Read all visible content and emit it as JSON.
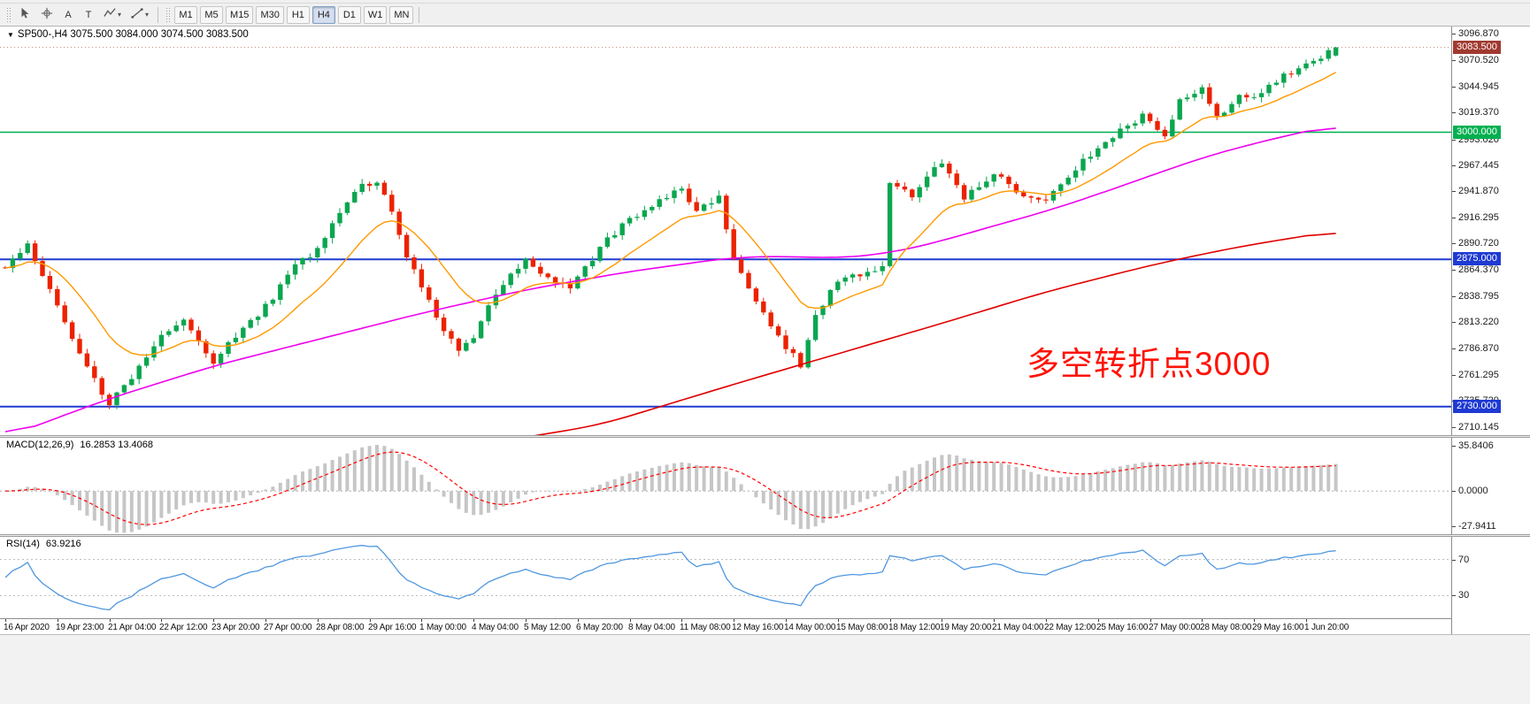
{
  "toolbar": {
    "tools": [
      {
        "name": "cursor-tool",
        "glyph": "cursor"
      },
      {
        "name": "crosshair-tool",
        "glyph": "crosshair"
      },
      {
        "name": "text-label-tool",
        "glyph": "A"
      },
      {
        "name": "text-box-tool",
        "glyph": "T"
      },
      {
        "name": "draw-shapes-tool",
        "glyph": "zigzag",
        "caret": true
      },
      {
        "name": "trendline-tool",
        "glyph": "trendline",
        "caret": true
      }
    ],
    "timeframes": [
      "M1",
      "M5",
      "M15",
      "M30",
      "H1",
      "H4",
      "D1",
      "W1",
      "MN"
    ],
    "active_timeframe": "H4"
  },
  "chart": {
    "marker": "▼",
    "symbol_line": "SP500-,H4 3075.500 3084.000 3074.500 3083.500",
    "annotation": {
      "text": "多空转折点3000",
      "color": "#ff1207"
    },
    "colors": {
      "up": "#0aa64f",
      "down": "#ec2200",
      "ma_fast": "#ff9900",
      "ma_mid": "#ee00ee",
      "ma_slow": "#e00000",
      "macd_hist": "#c6c6c6",
      "macd_signal": "#ff0000",
      "rsi_line": "#4f97e0",
      "bid_line": "#c87f76"
    },
    "hlines": [
      {
        "value": 3000,
        "color": "#00b050",
        "width": 1.6,
        "label": "3000.000"
      },
      {
        "value": 2875,
        "color": "#1f3ad2",
        "width": 2,
        "label": "2875.000"
      },
      {
        "value": 2730,
        "color": "#1f3ad2",
        "width": 2,
        "label": "2730.000"
      }
    ],
    "current_price": {
      "value": 3083.5,
      "label": "3083.500",
      "box_color": "#a03a30"
    }
  },
  "price_axis": {
    "labels": [
      "3096.870",
      "3070.520",
      "3044.945",
      "3019.370",
      "2993.020",
      "2967.445",
      "2941.870",
      "2916.295",
      "2890.720",
      "2864.370",
      "2838.795",
      "2813.220",
      "2786.870",
      "2761.295",
      "2735.720",
      "2710.145"
    ]
  },
  "time_axis": {
    "step": 7,
    "labels": [
      "16 Apr 2020",
      "19 Apr 23:00",
      "21 Apr 04:00",
      "22 Apr 12:00",
      "23 Apr 20:00",
      "27 Apr 00:00",
      "28 Apr 08:00",
      "29 Apr 16:00",
      "1 May 00:00",
      "4 May 04:00",
      "5 May 12:00",
      "6 May 20:00",
      "8 May 04:00",
      "11 May 08:00",
      "12 May 16:00",
      "14 May 00:00",
      "15 May 08:00",
      "18 May 12:00",
      "19 May 20:00",
      "21 May 04:00",
      "22 May 12:00",
      "25 May 16:00",
      "27 May 00:00",
      "28 May 08:00",
      "29 May 16:00",
      "1 Jun 20:00"
    ]
  },
  "macd": {
    "title": "MACD(12,26,9)",
    "values": "16.2853 13.4068",
    "axis": [
      "35.8406",
      "0.0000",
      "-27.9411"
    ]
  },
  "rsi": {
    "title": "RSI(14)",
    "value": "63.9216",
    "axis": [
      "70",
      "30"
    ]
  },
  "chart_data": {
    "type": "candlestick",
    "symbol": "SP500-",
    "timeframe": "H4",
    "candles_count": 180,
    "ohlc_current": {
      "open": 3075.5,
      "high": 3084.0,
      "low": 3074.5,
      "close": 3083.5
    },
    "price_range_visible": [
      2702,
      3104
    ],
    "levels": [
      3000,
      2875,
      2730
    ],
    "macd_params": [
      12,
      26,
      9
    ],
    "rsi_period": 14,
    "ma_fast_period": 14,
    "price_path": [
      [
        0,
        2865
      ],
      [
        3,
        2890
      ],
      [
        7,
        2830
      ],
      [
        10,
        2782
      ],
      [
        14,
        2733
      ],
      [
        17,
        2760
      ],
      [
        21,
        2800
      ],
      [
        24,
        2816
      ],
      [
        28,
        2775
      ],
      [
        31,
        2800
      ],
      [
        35,
        2828
      ],
      [
        39,
        2868
      ],
      [
        42,
        2886
      ],
      [
        45,
        2920
      ],
      [
        48,
        2948
      ],
      [
        50,
        2952
      ],
      [
        52,
        2920
      ],
      [
        54,
        2876
      ],
      [
        56,
        2850
      ],
      [
        59,
        2805
      ],
      [
        61,
        2786
      ],
      [
        63,
        2800
      ],
      [
        66,
        2840
      ],
      [
        70,
        2876
      ],
      [
        73,
        2856
      ],
      [
        76,
        2844
      ],
      [
        80,
        2886
      ],
      [
        84,
        2916
      ],
      [
        88,
        2932
      ],
      [
        91,
        2946
      ],
      [
        93,
        2920
      ],
      [
        96,
        2940
      ],
      [
        98,
        2872
      ],
      [
        101,
        2836
      ],
      [
        104,
        2800
      ],
      [
        107,
        2769
      ],
      [
        109,
        2820
      ],
      [
        112,
        2852
      ],
      [
        115,
        2860
      ],
      [
        118,
        2868
      ],
      [
        119,
        2950
      ],
      [
        122,
        2936
      ],
      [
        126,
        2972
      ],
      [
        129,
        2936
      ],
      [
        133,
        2960
      ],
      [
        136,
        2940
      ],
      [
        140,
        2936
      ],
      [
        143,
        2956
      ],
      [
        147,
        2986
      ],
      [
        150,
        3002
      ],
      [
        153,
        3016
      ],
      [
        156,
        2996
      ],
      [
        158,
        3030
      ],
      [
        161,
        3042
      ],
      [
        163,
        3016
      ],
      [
        166,
        3036
      ],
      [
        168,
        3032
      ],
      [
        171,
        3052
      ],
      [
        175,
        3068
      ],
      [
        179,
        3083.5
      ]
    ],
    "ma_mid_path": [
      [
        0,
        2700
      ],
      [
        14,
        2738
      ],
      [
        28,
        2770
      ],
      [
        42,
        2796
      ],
      [
        56,
        2822
      ],
      [
        70,
        2845
      ],
      [
        84,
        2863
      ],
      [
        98,
        2877
      ],
      [
        105,
        2878
      ],
      [
        112,
        2876
      ],
      [
        119,
        2881
      ],
      [
        126,
        2893
      ],
      [
        133,
        2908
      ],
      [
        140,
        2922
      ],
      [
        147,
        2939
      ],
      [
        154,
        2957
      ],
      [
        161,
        2975
      ],
      [
        168,
        2989
      ],
      [
        175,
        3001
      ],
      [
        179,
        3007
      ]
    ],
    "ma_slow_path": [
      [
        0,
        2612
      ],
      [
        20,
        2636
      ],
      [
        40,
        2660
      ],
      [
        56,
        2680
      ],
      [
        70,
        2700
      ],
      [
        80,
        2712
      ],
      [
        98,
        2752
      ],
      [
        112,
        2782
      ],
      [
        126,
        2812
      ],
      [
        140,
        2843
      ],
      [
        154,
        2869
      ],
      [
        161,
        2880
      ],
      [
        168,
        2890
      ],
      [
        175,
        2898
      ],
      [
        179,
        2903
      ]
    ]
  }
}
